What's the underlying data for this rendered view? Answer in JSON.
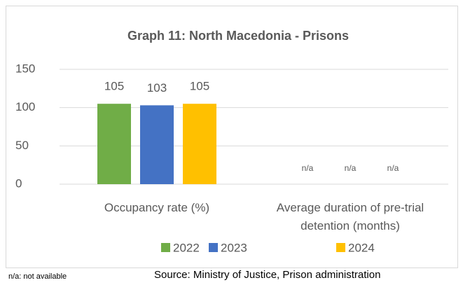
{
  "chart_data": {
    "type": "bar",
    "title": "Graph 11: North Macedonia - Prisons",
    "categories": [
      "Occupancy rate (%)",
      "Average duration of pre-trial detention (months)"
    ],
    "series": [
      {
        "name": "2022",
        "color": "#70ad47",
        "values": [
          105,
          null
        ],
        "value_labels": [
          "105",
          "n/a"
        ]
      },
      {
        "name": "2023",
        "color": "#4472c4",
        "values": [
          103,
          null
        ],
        "value_labels": [
          "103",
          "n/a"
        ]
      },
      {
        "name": "2024",
        "color": "#ffc000",
        "values": [
          105,
          null
        ],
        "value_labels": [
          "105",
          "n/a"
        ]
      }
    ],
    "ylim": [
      0,
      150
    ],
    "yticks": [
      0,
      50,
      100,
      150
    ],
    "grid": true,
    "legend": "bottom",
    "note": "n/a: not available",
    "source": "Source: Ministry of Justice, Prison administration"
  }
}
